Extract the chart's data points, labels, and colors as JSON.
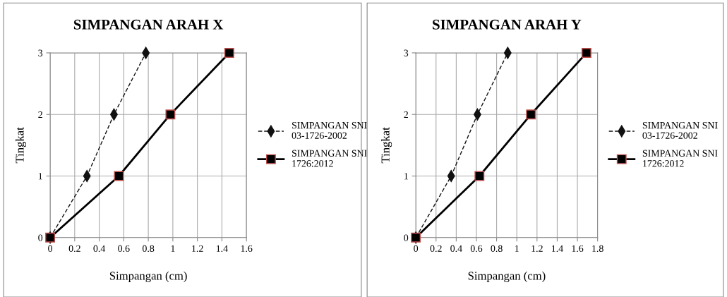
{
  "chart_data": [
    {
      "type": "line",
      "title": "SIMPANGAN ARAH X",
      "xlabel": "Simpangan (cm)",
      "ylabel": "Tingkat",
      "xlim": [
        0,
        1.6
      ],
      "xticks": [
        0,
        0.2,
        0.4,
        0.6,
        0.8,
        1,
        1.2,
        1.4,
        1.6
      ],
      "ylim": [
        0,
        3
      ],
      "yticks": [
        0,
        1,
        2,
        3
      ],
      "grid": true,
      "legend": "right",
      "series": [
        {
          "name": "SIMPANGAN SNI 03-1726-2002",
          "color": "#111111",
          "x": [
            0,
            0.3,
            0.52,
            0.78
          ],
          "values": [
            0,
            1,
            2,
            3
          ],
          "marker": "diamond",
          "line_style": "dashed"
        },
        {
          "name": "SIMPANGAN SNI 1726:2012",
          "color": "#000000",
          "x": [
            0,
            0.56,
            0.98,
            1.46
          ],
          "values": [
            0,
            1,
            2,
            3
          ],
          "marker": "square",
          "line_style": "solid"
        }
      ]
    },
    {
      "type": "line",
      "title": "SIMPANGAN ARAH Y",
      "xlabel": "Simpangan (cm)",
      "ylabel": "Tingkat",
      "xlim": [
        0,
        1.8
      ],
      "xticks": [
        0,
        0.2,
        0.4,
        0.6,
        0.8,
        1,
        1.2,
        1.4,
        1.6,
        1.8
      ],
      "ylim": [
        0,
        3
      ],
      "yticks": [
        0,
        1,
        2,
        3
      ],
      "grid": true,
      "legend": "right",
      "series": [
        {
          "name": "SIMPANGAN SNI 03-1726-2002",
          "color": "#111111",
          "x": [
            0,
            0.35,
            0.61,
            0.91
          ],
          "values": [
            0,
            1,
            2,
            3
          ],
          "marker": "diamond",
          "line_style": "dashed"
        },
        {
          "name": "SIMPANGAN SNI 1726:2012",
          "color": "#000000",
          "x": [
            0,
            0.63,
            1.14,
            1.69
          ],
          "values": [
            0,
            1,
            2,
            3
          ],
          "marker": "square",
          "line_style": "solid"
        }
      ]
    }
  ]
}
